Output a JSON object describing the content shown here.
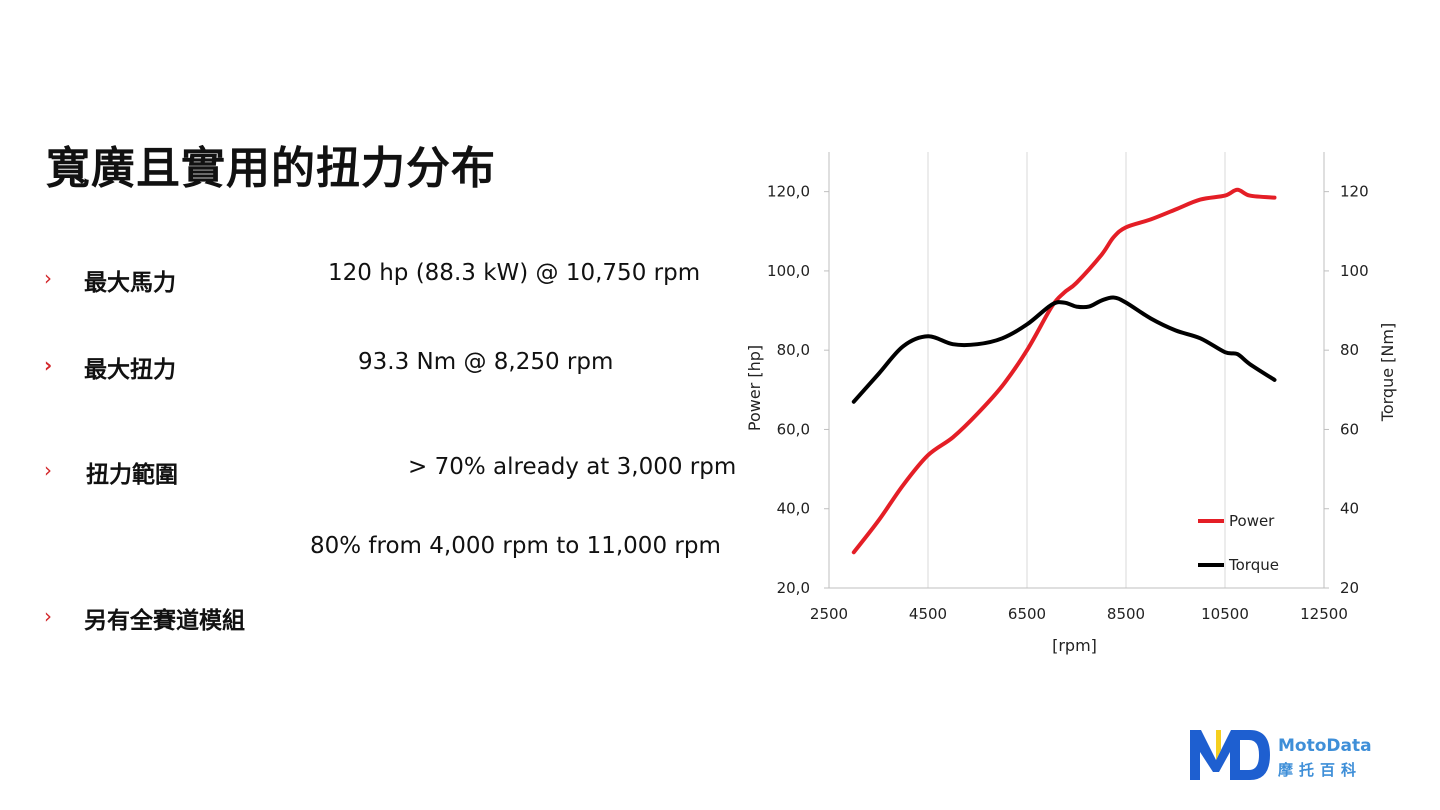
{
  "title": "寬廣且實用的扭力分布",
  "colors": {
    "bullet": "#d3272b",
    "power": "#e41e26",
    "torque": "#000000",
    "logo_blue": "#1e5fd0",
    "logo_yellow": "#f5cf1e"
  },
  "bullets": [
    {
      "marker": "›",
      "label": "最大馬力",
      "values": [
        "120 hp (88.3 kW) @ 10,750 rpm"
      ]
    },
    {
      "marker": "›",
      "label": "最大扭力",
      "values": [
        "93.3 Nm @ 8,250 rpm"
      ]
    },
    {
      "marker": "›",
      "label": "扭力範圍",
      "values": [
        "> 70% already at 3,000 rpm",
        "80% from 4,000 rpm to 11,000 rpm"
      ]
    },
    {
      "marker": "›",
      "label": "另有全賽道模組",
      "values": []
    }
  ],
  "logo": {
    "line1": "MotoData",
    "line2": "摩托百科"
  },
  "chart_data": {
    "type": "line",
    "xlabel": "[rpm]",
    "ylabel_left": "Power [hp]",
    "ylabel_right": "Torque  [Nm]",
    "xlim": [
      2500,
      12500
    ],
    "ylim_left": [
      20,
      130
    ],
    "ylim_right": [
      20,
      130
    ],
    "x_ticks": [
      "2500",
      "4500",
      "6500",
      "8500",
      "10500",
      "12500"
    ],
    "y_ticks_left": [
      "20,0",
      "40,0",
      "60,0",
      "80,0",
      "100,0",
      "120,0"
    ],
    "y_ticks_right": [
      "20",
      "40",
      "60",
      "80",
      "100",
      "120"
    ],
    "grid": "vertical",
    "legend_position": "bottom-right",
    "series": [
      {
        "name": "Power",
        "axis": "left",
        "x": [
          3000,
          3500,
          4000,
          4500,
          5000,
          5500,
          6000,
          6500,
          7000,
          7250,
          7500,
          8000,
          8250,
          8500,
          9000,
          9500,
          10000,
          10500,
          10750,
          11000,
          11500
        ],
        "y": [
          29,
          37,
          46,
          53.5,
          58,
          64,
          71,
          80,
          91,
          94.5,
          97,
          104,
          108.5,
          111,
          113,
          115.5,
          118,
          119,
          120.5,
          119,
          118.5
        ]
      },
      {
        "name": "Torque",
        "axis": "right",
        "x": [
          3000,
          3500,
          4000,
          4500,
          5000,
          5500,
          6000,
          6500,
          7000,
          7250,
          7500,
          7750,
          8000,
          8250,
          8500,
          9000,
          9500,
          10000,
          10500,
          10750,
          11000,
          11500
        ],
        "y": [
          67,
          74,
          81,
          83.5,
          81.5,
          81.5,
          83,
          86.5,
          91.5,
          92,
          91,
          91,
          92.5,
          93.3,
          92,
          88,
          85,
          83,
          79.5,
          79,
          76.5,
          72.5
        ]
      }
    ]
  }
}
